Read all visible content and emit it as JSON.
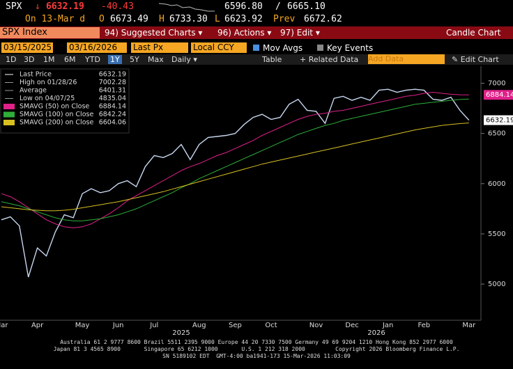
{
  "header": {
    "ticker": "SPX",
    "arrow": "↓",
    "last": "6632.19",
    "change": "-40.43",
    "bid": "6596.80",
    "slash": "/",
    "ask": "6665.10",
    "on": "On 13-Mar d",
    "o_label": "O",
    "open": "6673.49",
    "h_label": "H",
    "high": "6733.30",
    "l_label": "L",
    "low": "6623.92",
    "prev_label": "Prev",
    "prev": "6672.62"
  },
  "toolbar": {
    "security": "SPX Index",
    "suggested": "94) Suggested Charts ▾",
    "actions": "96) Actions ▾",
    "edit": "97) Edit ▾",
    "view": "Candle Chart"
  },
  "controls": {
    "start": "03/15/2025",
    "end": "03/16/2026",
    "field": "Last Px",
    "currency": "Local CCY",
    "mov_avgs": "Mov Avgs",
    "key_events": "Key Events"
  },
  "periods": [
    "1D",
    "3D",
    "1M",
    "6M",
    "YTD",
    "1Y",
    "5Y",
    "Max"
  ],
  "period_bar": {
    "frequency": "Daily ▾",
    "table": "Table",
    "related": "+ Related Data",
    "add_data": "Add Data",
    "edit_chart": "✎ Edit Chart"
  },
  "chart_data": {
    "type": "line",
    "categories": [
      "Mar",
      null,
      null,
      null,
      "Apr",
      null,
      null,
      null,
      null,
      "May",
      null,
      null,
      null,
      "Jun",
      null,
      null,
      null,
      "Jul",
      null,
      null,
      null,
      null,
      "Aug",
      null,
      null,
      null,
      "Sep",
      null,
      null,
      null,
      "Oct",
      null,
      null,
      null,
      null,
      "Nov",
      null,
      null,
      null,
      "Dec",
      null,
      null,
      null,
      "Jan",
      null,
      null,
      null,
      "Feb",
      null,
      null,
      null,
      null,
      "Mar"
    ],
    "year_labels": [
      "2025",
      "2026"
    ],
    "series": [
      {
        "name": "Last Price",
        "color": "#c8d8f0",
        "values": [
          5640,
          5670,
          5580,
          5070,
          5360,
          5280,
          5520,
          5690,
          5660,
          5900,
          5950,
          5910,
          5930,
          6000,
          6030,
          5970,
          6170,
          6280,
          6260,
          6300,
          6390,
          6240,
          6390,
          6460,
          6470,
          6480,
          6500,
          6590,
          6660,
          6690,
          6640,
          6660,
          6790,
          6840,
          6730,
          6720,
          6600,
          6850,
          6870,
          6830,
          6860,
          6830,
          6930,
          6940,
          6910,
          6930,
          6940,
          6930,
          6840,
          6830,
          6860,
          6730,
          6632.19
        ]
      },
      {
        "name": "SMAVG (50) on Close",
        "color": "#e0218a",
        "values": [
          5900,
          5870,
          5820,
          5760,
          5700,
          5640,
          5600,
          5570,
          5560,
          5570,
          5600,
          5650,
          5700,
          5760,
          5830,
          5880,
          5930,
          5980,
          6030,
          6080,
          6130,
          6170,
          6200,
          6240,
          6280,
          6310,
          6350,
          6390,
          6430,
          6480,
          6520,
          6560,
          6600,
          6640,
          6670,
          6690,
          6700,
          6720,
          6730,
          6750,
          6770,
          6790,
          6810,
          6830,
          6850,
          6870,
          6880,
          6900,
          6910,
          6900,
          6890,
          6885,
          6884.14
        ]
      },
      {
        "name": "SMAVG (100) on Close",
        "color": "#2fae3a",
        "values": [
          5820,
          5800,
          5780,
          5750,
          5720,
          5690,
          5660,
          5640,
          5630,
          5630,
          5640,
          5650,
          5670,
          5690,
          5720,
          5750,
          5790,
          5830,
          5870,
          5910,
          5960,
          6000,
          6050,
          6090,
          6130,
          6170,
          6210,
          6250,
          6290,
          6330,
          6370,
          6410,
          6450,
          6490,
          6520,
          6550,
          6580,
          6600,
          6630,
          6650,
          6670,
          6690,
          6710,
          6730,
          6750,
          6770,
          6790,
          6800,
          6810,
          6820,
          6830,
          6838,
          6842.24
        ]
      },
      {
        "name": "SMAVG (200) on Close",
        "color": "#d8c020",
        "values": [
          5770,
          5760,
          5750,
          5740,
          5735,
          5730,
          5730,
          5735,
          5745,
          5760,
          5775,
          5790,
          5805,
          5820,
          5840,
          5860,
          5880,
          5900,
          5920,
          5945,
          5970,
          5995,
          6020,
          6045,
          6070,
          6095,
          6120,
          6145,
          6170,
          6195,
          6215,
          6235,
          6255,
          6275,
          6295,
          6315,
          6335,
          6355,
          6375,
          6395,
          6415,
          6435,
          6455,
          6475,
          6495,
          6515,
          6535,
          6550,
          6565,
          6580,
          6590,
          6598,
          6604.06
        ]
      }
    ],
    "legend_stats": [
      {
        "label": "High on 01/28/26",
        "value": 7002.28
      },
      {
        "label": "Average",
        "value": 6401.31
      },
      {
        "label": "Low on 04/07/25",
        "value": 4835.04
      }
    ],
    "ylim": [
      4640,
      7170
    ],
    "yticks": [
      5000,
      5500,
      6000,
      6500,
      7000
    ],
    "grid": false
  },
  "footer": [
    "Australia 61 2 9777 8600 Brazil 5511 2395 9000 Europe 44 20 7330 7500 Germany 49 69 9204 1210 Hong Kong 852 2977 6000",
    "Japan 81 3 4565 8900       Singapore 65 6212 1000       U.S. 1 212 318 2000         Copyright 2026 Bloomberg Finance L.P.",
    "SN 5189102 EDT  GMT-4:00 ba1941-173 15-Mar-2026 11:03:09"
  ]
}
